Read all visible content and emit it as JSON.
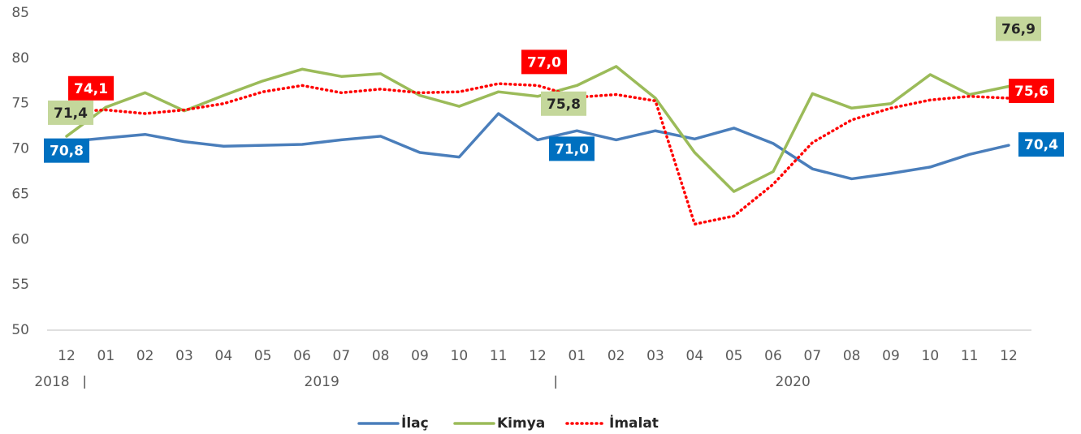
{
  "chart_data": {
    "type": "line",
    "categories": [
      "12",
      "01",
      "02",
      "03",
      "04",
      "05",
      "06",
      "07",
      "08",
      "09",
      "10",
      "11",
      "12",
      "01",
      "02",
      "03",
      "04",
      "05",
      "06",
      "07",
      "08",
      "09",
      "10",
      "11",
      "12"
    ],
    "groups": [
      {
        "label": "2018",
        "start": 0,
        "end": 0
      },
      {
        "label": "2019",
        "start": 1,
        "end": 12
      },
      {
        "label": "2020",
        "start": 13,
        "end": 24
      }
    ],
    "ylim": [
      50,
      85
    ],
    "yticks": [
      50,
      55,
      60,
      65,
      70,
      75,
      80,
      85
    ],
    "series": [
      {
        "name": "İlaç",
        "color": "#4a7ebb",
        "style": "solid",
        "label_color": "#0070c0",
        "label_text_color": "#ffffff",
        "values": [
          70.8,
          71.2,
          71.6,
          70.8,
          70.3,
          70.4,
          70.5,
          71.0,
          71.4,
          69.6,
          69.1,
          73.9,
          71.0,
          72.0,
          71.0,
          72.0,
          71.1,
          72.3,
          70.6,
          67.8,
          66.7,
          67.3,
          68.0,
          69.4,
          70.4
        ],
        "value_labels": [
          "70,8",
          null,
          null,
          null,
          null,
          null,
          null,
          null,
          null,
          null,
          null,
          null,
          "71,0",
          null,
          null,
          null,
          null,
          null,
          null,
          null,
          null,
          null,
          null,
          null,
          "70,4"
        ]
      },
      {
        "name": "Kimya",
        "color": "#9bbb59",
        "style": "solid",
        "label_color": "#c4d79b",
        "label_text_color": "#262626",
        "values": [
          71.4,
          74.6,
          76.2,
          74.2,
          75.9,
          77.5,
          78.8,
          78.0,
          78.3,
          75.9,
          74.7,
          76.3,
          75.8,
          77.0,
          79.1,
          75.6,
          69.6,
          65.3,
          67.5,
          76.1,
          74.5,
          75.0,
          78.2,
          76.0,
          76.9
        ],
        "value_labels": [
          "71,4",
          null,
          null,
          null,
          null,
          null,
          null,
          null,
          null,
          null,
          null,
          null,
          "75,8",
          null,
          null,
          null,
          null,
          null,
          null,
          null,
          null,
          null,
          null,
          null,
          "76,9"
        ]
      },
      {
        "name": "İmalat",
        "color": "#ff0000",
        "style": "dotted",
        "label_color": "#ff0000",
        "label_text_color": "#ffffff",
        "values": [
          74.1,
          74.3,
          73.9,
          74.3,
          75.0,
          76.3,
          77.0,
          76.2,
          76.6,
          76.2,
          76.3,
          77.2,
          77.0,
          75.7,
          76.0,
          75.3,
          61.7,
          62.6,
          66.1,
          70.7,
          73.2,
          74.5,
          75.4,
          75.8,
          75.6
        ],
        "value_labels": [
          "74,1",
          null,
          null,
          null,
          null,
          null,
          null,
          null,
          null,
          null,
          null,
          null,
          "77,0",
          null,
          null,
          null,
          null,
          null,
          null,
          null,
          null,
          null,
          null,
          null,
          "75,6"
        ]
      }
    ]
  }
}
